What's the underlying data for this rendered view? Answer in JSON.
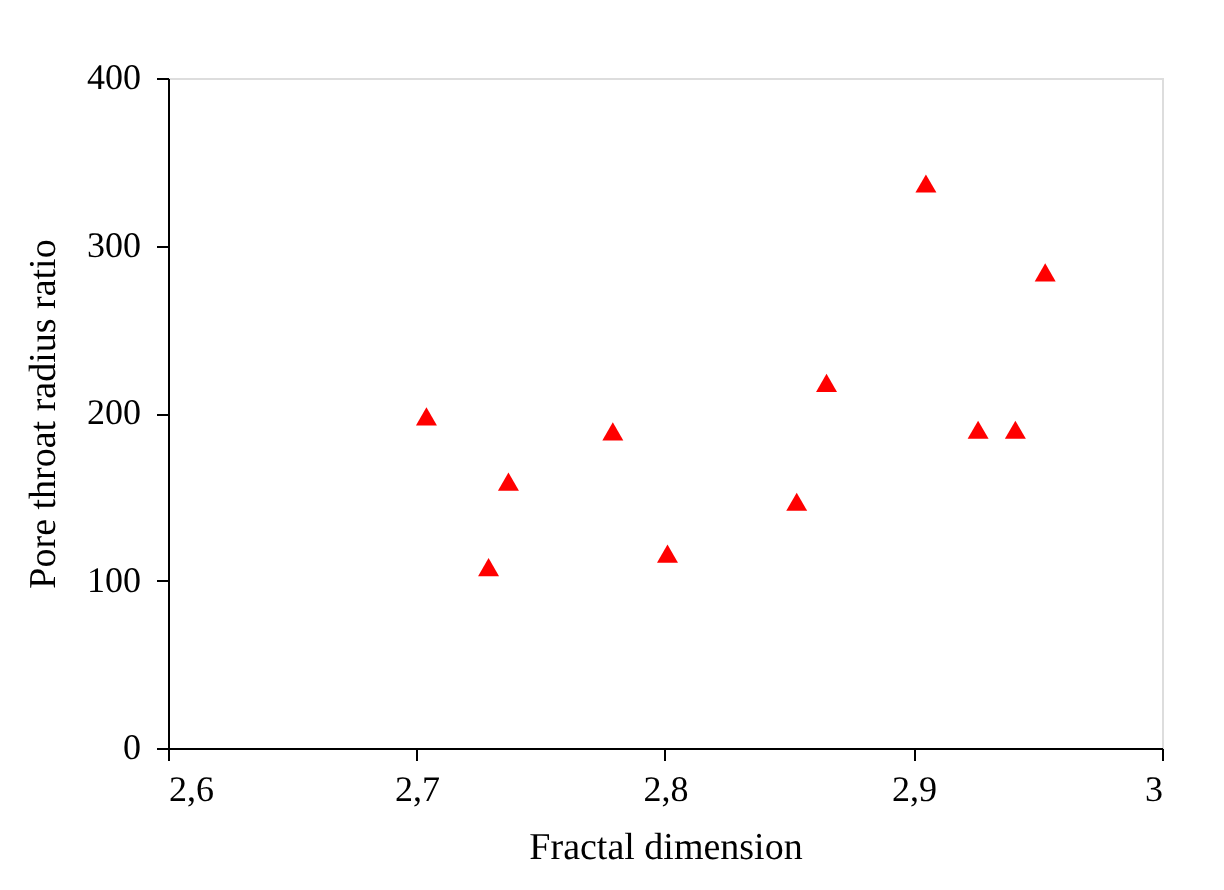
{
  "chart_data": {
    "type": "scatter",
    "xlabel": "Fractal dimension",
    "ylabel": "Pore throat radius ratio",
    "x": [
      2.704,
      2.729,
      2.737,
      2.779,
      2.801,
      2.853,
      2.865,
      2.905,
      2.926,
      2.941,
      2.953
    ],
    "series": [
      {
        "color": "#ff0000",
        "values": [
          198,
          108,
          159,
          189,
          116,
          147,
          218,
          337,
          190,
          190,
          284
        ]
      }
    ],
    "xlim": [
      2.6,
      3.0
    ],
    "xticks": [
      {
        "value": 2.6,
        "label": "2,6"
      },
      {
        "value": 2.7,
        "label": "2,7"
      },
      {
        "value": 2.8,
        "label": "2,8"
      },
      {
        "value": 2.9,
        "label": "2,9"
      },
      {
        "value": 3,
        "label": "3"
      }
    ],
    "ylim": [
      0,
      400
    ],
    "yticks": [
      0,
      100,
      200,
      300,
      400
    ],
    "marker": "triangle",
    "grid": false,
    "legend": false
  }
}
